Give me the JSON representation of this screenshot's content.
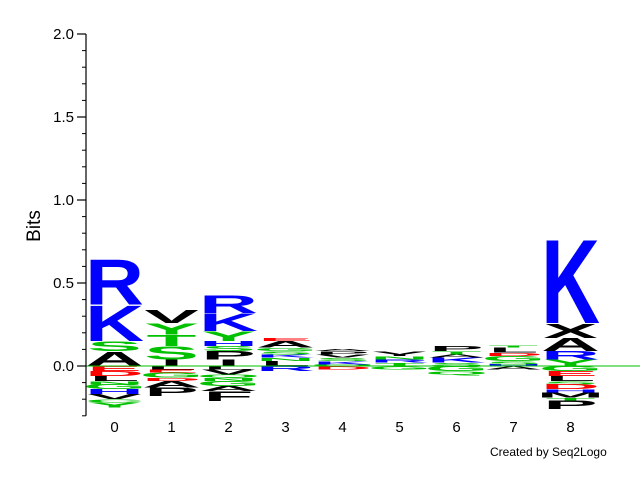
{
  "chart_data": {
    "type": "sequence-logo",
    "ylabel": "Bits",
    "ylim": [
      -0.3,
      2.0
    ],
    "yticks": [
      {
        "value": 2.0,
        "label": "2.0"
      },
      {
        "value": 1.5,
        "label": "1.5"
      },
      {
        "value": 1.0,
        "label": "1.0"
      },
      {
        "value": 0.5,
        "label": "0.5"
      },
      {
        "value": 0.0,
        "label": "0.0"
      }
    ],
    "positions": [
      "0",
      "1",
      "2",
      "3",
      "4",
      "5",
      "6",
      "7",
      "8"
    ],
    "colors": {
      "basic": "#0000ff",
      "polar": "#00c000",
      "hydrophobic": "#000000",
      "acidic": "#ff0000",
      "neutral": "#9932cc"
    },
    "stacks": [
      {
        "position": "0",
        "positive": [
          {
            "letter": "A",
            "height": 0.09,
            "color": "#000000"
          },
          {
            "letter": "S",
            "height": 0.06,
            "color": "#00c000"
          },
          {
            "letter": "K",
            "height": 0.22,
            "color": "#0000ff"
          },
          {
            "letter": "R",
            "height": 0.28,
            "color": "#0000ff"
          }
        ],
        "negative": [
          {
            "letter": "E",
            "height": 0.03,
            "color": "#ff0000"
          },
          {
            "letter": "D",
            "height": 0.03,
            "color": "#ff0000"
          },
          {
            "letter": "L",
            "height": 0.03,
            "color": "#000000"
          },
          {
            "letter": "N",
            "height": 0.02,
            "color": "#00c000"
          },
          {
            "letter": "G",
            "height": 0.03,
            "color": "#00c000"
          },
          {
            "letter": "H",
            "height": 0.03,
            "color": "#0000ff"
          },
          {
            "letter": "V",
            "height": 0.03,
            "color": "#000000"
          },
          {
            "letter": "C",
            "height": 0.02,
            "color": "#00c000"
          },
          {
            "letter": "Y",
            "height": 0.03,
            "color": "#00c000"
          }
        ]
      },
      {
        "position": "1",
        "positive": [
          {
            "letter": "I",
            "height": 0.04,
            "color": "#000000"
          },
          {
            "letter": "S",
            "height": 0.08,
            "color": "#00c000"
          },
          {
            "letter": "T",
            "height": 0.07,
            "color": "#00c000"
          },
          {
            "letter": "Y",
            "height": 0.07,
            "color": "#00c000"
          },
          {
            "letter": "V",
            "height": 0.08,
            "color": "#000000"
          }
        ],
        "negative": [
          {
            "letter": "L",
            "height": 0.02,
            "color": "#000000"
          },
          {
            "letter": "E",
            "height": 0.02,
            "color": "#ff0000"
          },
          {
            "letter": "G",
            "height": 0.03,
            "color": "#00c000"
          },
          {
            "letter": "D",
            "height": 0.02,
            "color": "#ff0000"
          },
          {
            "letter": "A",
            "height": 0.04,
            "color": "#000000"
          },
          {
            "letter": "P",
            "height": 0.05,
            "color": "#000000"
          }
        ]
      },
      {
        "position": "2",
        "positive": [
          {
            "letter": "I",
            "height": 0.04,
            "color": "#000000"
          },
          {
            "letter": "P",
            "height": 0.05,
            "color": "#000000"
          },
          {
            "letter": "S",
            "height": 0.03,
            "color": "#00c000"
          },
          {
            "letter": "H",
            "height": 0.03,
            "color": "#0000ff"
          },
          {
            "letter": "Y",
            "height": 0.06,
            "color": "#00c000"
          },
          {
            "letter": "K",
            "height": 0.11,
            "color": "#0000ff"
          },
          {
            "letter": "R",
            "height": 0.11,
            "color": "#0000ff"
          }
        ],
        "negative": [
          {
            "letter": "L",
            "height": 0.02,
            "color": "#000000"
          },
          {
            "letter": "V",
            "height": 0.03,
            "color": "#000000"
          },
          {
            "letter": "Q",
            "height": 0.02,
            "color": "#00c000"
          },
          {
            "letter": "N",
            "height": 0.02,
            "color": "#00c000"
          },
          {
            "letter": "G",
            "height": 0.03,
            "color": "#00c000"
          },
          {
            "letter": "A",
            "height": 0.03,
            "color": "#000000"
          },
          {
            "letter": "F",
            "height": 0.06,
            "color": "#000000"
          }
        ]
      },
      {
        "position": "3",
        "positive": [
          {
            "letter": "L",
            "height": 0.03,
            "color": "#000000"
          },
          {
            "letter": "N",
            "height": 0.02,
            "color": "#00c000"
          },
          {
            "letter": "K",
            "height": 0.02,
            "color": "#0000ff"
          },
          {
            "letter": "S",
            "height": 0.02,
            "color": "#00c000"
          },
          {
            "letter": "G",
            "height": 0.02,
            "color": "#00c000"
          },
          {
            "letter": "A",
            "height": 0.04,
            "color": "#000000"
          },
          {
            "letter": "E",
            "height": 0.02,
            "color": "#ff0000"
          }
        ],
        "negative": [
          {
            "letter": "R",
            "height": 0.03,
            "color": "#0000ff"
          }
        ]
      },
      {
        "position": "4",
        "positive": [
          {
            "letter": "Q",
            "height": 0.01,
            "color": "#00c000"
          },
          {
            "letter": "K",
            "height": 0.02,
            "color": "#0000ff"
          },
          {
            "letter": "S",
            "height": 0.02,
            "color": "#00c000"
          },
          {
            "letter": "V",
            "height": 0.02,
            "color": "#000000"
          },
          {
            "letter": "P",
            "height": 0.02,
            "color": "#000000"
          },
          {
            "letter": "A",
            "height": 0.01,
            "color": "#000000"
          }
        ],
        "negative": [
          {
            "letter": "D",
            "height": 0.02,
            "color": "#ff0000"
          }
        ]
      },
      {
        "position": "5",
        "positive": [
          {
            "letter": "T",
            "height": 0.02,
            "color": "#00c000"
          },
          {
            "letter": "R",
            "height": 0.02,
            "color": "#0000ff"
          },
          {
            "letter": "N",
            "height": 0.02,
            "color": "#00c000"
          },
          {
            "letter": "I",
            "height": 0.01,
            "color": "#000000"
          },
          {
            "letter": "V",
            "height": 0.02,
            "color": "#000000"
          }
        ],
        "negative": [
          {
            "letter": "G",
            "height": 0.02,
            "color": "#00c000"
          }
        ]
      },
      {
        "position": "6",
        "positive": [
          {
            "letter": "S",
            "height": 0.02,
            "color": "#00c000"
          },
          {
            "letter": "K",
            "height": 0.03,
            "color": "#0000ff"
          },
          {
            "letter": "A",
            "height": 0.02,
            "color": "#000000"
          },
          {
            "letter": "T",
            "height": 0.02,
            "color": "#00c000"
          },
          {
            "letter": "P",
            "height": 0.03,
            "color": "#000000"
          }
        ],
        "negative": [
          {
            "letter": "G",
            "height": 0.03,
            "color": "#00c000"
          },
          {
            "letter": "Q",
            "height": 0.02,
            "color": "#00c000"
          }
        ]
      },
      {
        "position": "7",
        "positive": [
          {
            "letter": "H",
            "height": 0.01,
            "color": "#0000ff"
          },
          {
            "letter": "S",
            "height": 0.02,
            "color": "#00c000"
          },
          {
            "letter": "G",
            "height": 0.03,
            "color": "#00c000"
          },
          {
            "letter": "D",
            "height": 0.02,
            "color": "#ff0000"
          },
          {
            "letter": "L",
            "height": 0.03,
            "color": "#000000"
          },
          {
            "letter": "T",
            "height": 0.01,
            "color": "#00c000"
          }
        ],
        "negative": [
          {
            "letter": "A",
            "height": 0.02,
            "color": "#000000"
          }
        ]
      },
      {
        "position": "8",
        "positive": [
          {
            "letter": "Y",
            "height": 0.04,
            "color": "#00c000"
          },
          {
            "letter": "R",
            "height": 0.05,
            "color": "#0000ff"
          },
          {
            "letter": "A",
            "height": 0.08,
            "color": "#000000"
          },
          {
            "letter": "X",
            "height": 0.09,
            "color": "#000000"
          },
          {
            "letter": "K",
            "height": 0.52,
            "color": "#0000ff"
          }
        ],
        "negative": [
          {
            "letter": "G",
            "height": 0.03,
            "color": "#00c000"
          },
          {
            "letter": "E",
            "height": 0.03,
            "color": "#ff0000"
          },
          {
            "letter": "L",
            "height": 0.03,
            "color": "#000000"
          },
          {
            "letter": "S",
            "height": 0.02,
            "color": "#00c000"
          },
          {
            "letter": "D",
            "height": 0.03,
            "color": "#ff0000"
          },
          {
            "letter": "H",
            "height": 0.02,
            "color": "#0000ff"
          },
          {
            "letter": "M",
            "height": 0.03,
            "color": "#000000"
          },
          {
            "letter": "T",
            "height": 0.02,
            "color": "#00c000"
          },
          {
            "letter": "P",
            "height": 0.05,
            "color": "#000000"
          }
        ]
      }
    ]
  },
  "credit": "Created by Seq2Logo"
}
